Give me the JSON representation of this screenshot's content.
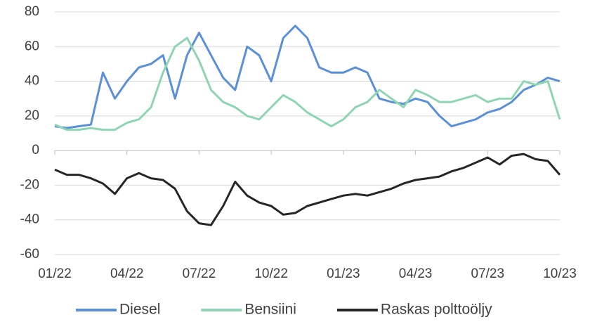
{
  "chart_data": {
    "type": "line",
    "categories": [
      "01/22",
      null,
      null,
      null,
      null,
      null,
      "04/22",
      null,
      null,
      null,
      null,
      null,
      "07/22",
      null,
      null,
      null,
      null,
      null,
      "10/22",
      null,
      null,
      null,
      null,
      null,
      "01/23",
      null,
      null,
      null,
      null,
      null,
      "04/23",
      null,
      null,
      null,
      null,
      null,
      "07/23",
      null,
      null,
      null,
      null,
      null,
      "10/23"
    ],
    "series": [
      {
        "name": "Diesel",
        "color": "#5b8fd6",
        "values": [
          14,
          13,
          14,
          15,
          45,
          30,
          40,
          48,
          50,
          55,
          30,
          55,
          68,
          55,
          42,
          35,
          60,
          55,
          40,
          65,
          72,
          65,
          48,
          45,
          45,
          48,
          45,
          30,
          28,
          27,
          30,
          28,
          20,
          14,
          16,
          18,
          22,
          24,
          28,
          35,
          38,
          42,
          40
        ]
      },
      {
        "name": "Bensiini",
        "color": "#8fd5b4",
        "values": [
          15,
          12,
          12,
          13,
          12,
          12,
          16,
          18,
          25,
          45,
          60,
          65,
          52,
          35,
          28,
          25,
          20,
          18,
          25,
          32,
          28,
          22,
          18,
          14,
          18,
          25,
          28,
          35,
          30,
          25,
          35,
          32,
          28,
          28,
          30,
          32,
          28,
          30,
          30,
          40,
          38,
          40,
          18
        ]
      },
      {
        "name": "Raskas polttoöljy",
        "color": "#262626",
        "values": [
          -11,
          -14,
          -14,
          -16,
          -19,
          -25,
          -16,
          -13,
          -16,
          -17,
          -22,
          -35,
          -42,
          -43,
          -32,
          -18,
          -26,
          -30,
          -32,
          -37,
          -36,
          -32,
          -30,
          -28,
          -26,
          -25,
          -26,
          -24,
          -22,
          -19,
          -17,
          -16,
          -15,
          -12,
          -10,
          -7,
          -4,
          -8,
          -3,
          -2,
          -5,
          -6,
          -14
        ]
      }
    ],
    "ylim": [
      -60,
      80
    ],
    "yticks": [
      -60,
      -40,
      -20,
      0,
      20,
      40,
      60,
      80
    ],
    "grid": true,
    "legend": "bottom"
  }
}
